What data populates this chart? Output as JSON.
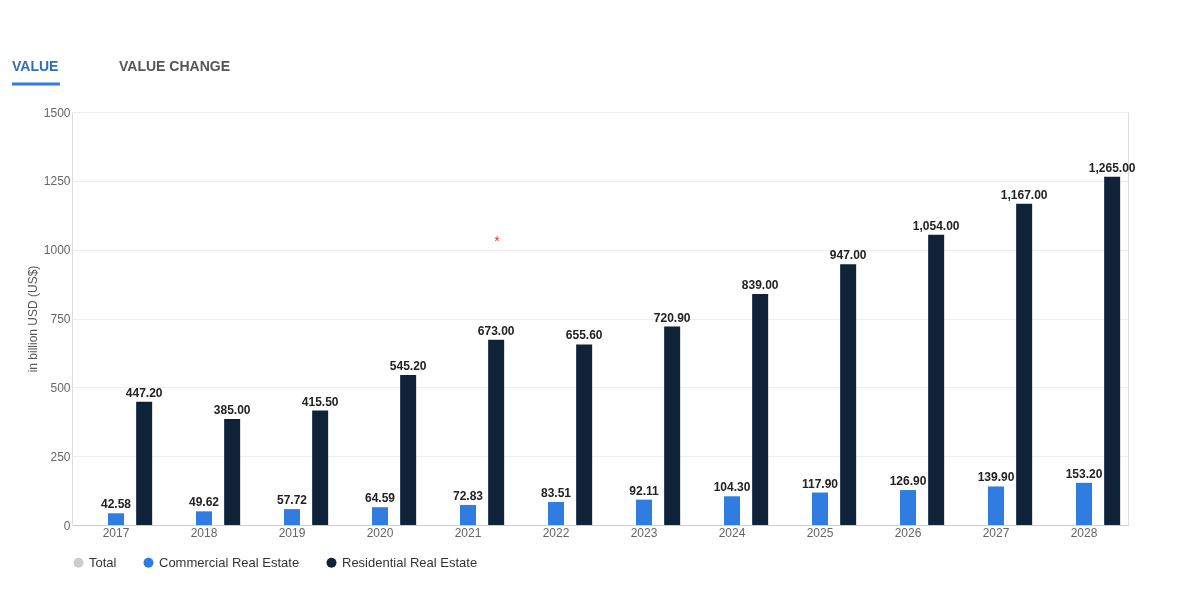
{
  "chart_data": {
    "type": "bar",
    "ylabel": "in billion USD (US$)",
    "categories": [
      "2017",
      "2018",
      "2019",
      "2020",
      "2021",
      "2022",
      "2023",
      "2024",
      "2025",
      "2026",
      "2027",
      "2028"
    ],
    "series": [
      {
        "name": "Total",
        "color": "#cccccc",
        "values": [
          null,
          null,
          null,
          null,
          null,
          null,
          null,
          null,
          null,
          null,
          null,
          null
        ]
      },
      {
        "name": "Commercial Real Estate",
        "color": "#2f7de1",
        "values": [
          42.58,
          49.62,
          57.72,
          64.59,
          72.83,
          83.51,
          92.11,
          104.3,
          117.9,
          126.9,
          139.9,
          153.2
        ],
        "value_labels": [
          "42.58",
          "49.62",
          "57.72",
          "64.59",
          "72.83",
          "83.51",
          "92.11",
          "104.30",
          "117.90",
          "126.90",
          "139.90",
          "153.20"
        ]
      },
      {
        "name": "Residential Real Estate",
        "color": "#0f2338",
        "values": [
          447.2,
          385.0,
          415.5,
          545.2,
          673.0,
          655.6,
          720.9,
          839.0,
          947.0,
          1054.0,
          1167.0,
          1265.0
        ],
        "value_labels": [
          "447.20",
          "385.00",
          "415.50",
          "545.20",
          "673.00",
          "655.60",
          "720.90",
          "839.00",
          "947.00",
          "1,054.00",
          "1,167.00",
          "1,265.00"
        ]
      }
    ],
    "ylim": [
      0,
      1500
    ],
    "yticks": [
      0,
      250,
      500,
      750,
      1000,
      1250,
      1500
    ],
    "grid": "y",
    "legend": "bottom",
    "annotations": [
      "VALUE",
      "VALUE CHANGE",
      "*"
    ]
  }
}
